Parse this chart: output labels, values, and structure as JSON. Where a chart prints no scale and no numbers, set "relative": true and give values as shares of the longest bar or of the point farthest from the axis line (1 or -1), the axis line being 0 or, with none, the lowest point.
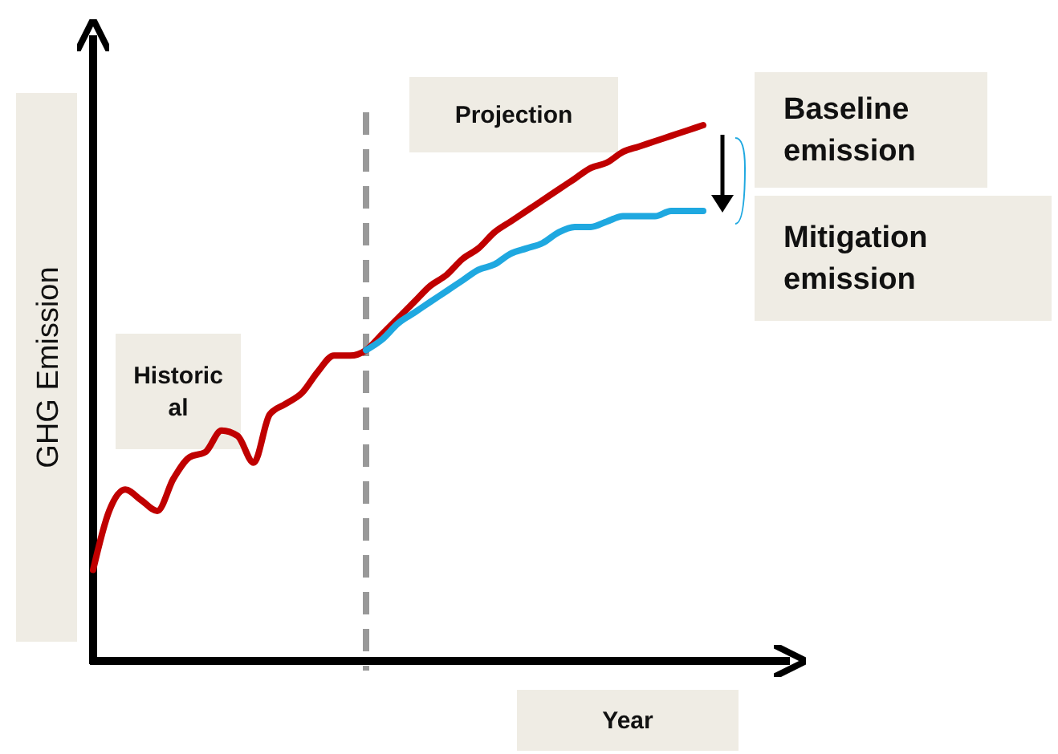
{
  "chart_data": {
    "type": "line",
    "relative": true,
    "xlabel": "Year",
    "ylabel": "GHG Emission",
    "categories": [
      null,
      null,
      null,
      null,
      null,
      null,
      null,
      null,
      null,
      null,
      null,
      null,
      null,
      null,
      null,
      null,
      null,
      null,
      null,
      null,
      null,
      null,
      null,
      null,
      null,
      null,
      null,
      null,
      null,
      null,
      null,
      null,
      null,
      null,
      null,
      null,
      null,
      null,
      null
    ],
    "series": [
      {
        "name": "Baseline emission",
        "color": "#c00000",
        "values": [
          0.17,
          0.28,
          0.32,
          0.3,
          0.28,
          0.34,
          0.38,
          0.39,
          0.43,
          0.42,
          0.37,
          0.46,
          0.48,
          0.5,
          0.54,
          0.57,
          0.57,
          0.58,
          0.61,
          0.64,
          0.67,
          0.7,
          0.72,
          0.75,
          0.77,
          0.8,
          0.82,
          0.84,
          0.86,
          0.88,
          0.9,
          0.92,
          0.93,
          0.95,
          0.96,
          0.97,
          0.98,
          0.99,
          1
        ]
      },
      {
        "name": "Mitigation emission",
        "color": "#1fa8e0",
        "values": [
          null,
          null,
          null,
          null,
          null,
          null,
          null,
          null,
          null,
          null,
          null,
          null,
          null,
          null,
          null,
          null,
          null,
          0.58,
          0.6,
          0.63,
          0.65,
          0.67,
          0.69,
          0.71,
          0.73,
          0.74,
          0.76,
          0.77,
          0.78,
          0.8,
          0.81,
          0.81,
          0.82,
          0.83,
          0.83,
          0.83,
          0.84,
          0.84,
          0.84
        ]
      }
    ],
    "annotations": [
      "Projection",
      "Historic\nal"
    ],
    "line_style": "solid",
    "marker": "none"
  }
}
